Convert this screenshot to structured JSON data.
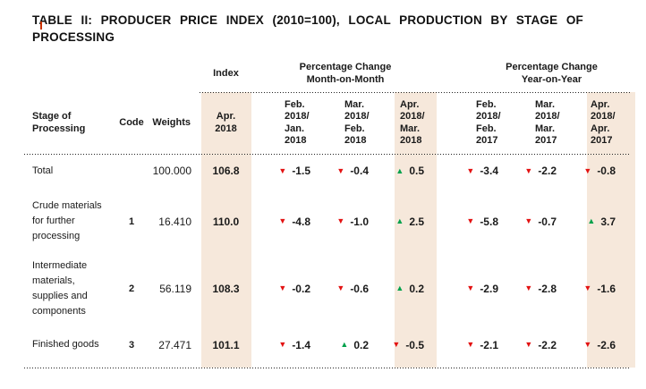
{
  "colors": {
    "highlight_band": "#f6e8db",
    "decrease_red": "#e31212",
    "increase_green": "#00a14b"
  },
  "title": {
    "line1": "TABLE II: PRODUCER PRICE INDEX (2010=100), LOCAL PRODUCTION BY STAGE OF",
    "line2": "PROCESSING"
  },
  "table": {
    "group_headers": {
      "index": "Index",
      "mom": "Percentage Change\nMonth-on-Month",
      "yoy": "Percentage Change\nYear-on-Year"
    },
    "col_headers": {
      "stage": "Stage of\nProcessing",
      "code": "Code",
      "weights": "Weights",
      "index_period": "Apr.\n2018",
      "mom": [
        "Feb.\n2018/\nJan.\n2018",
        "Mar.\n2018/\nFeb.\n2018",
        "Apr.\n2018/\nMar.\n2018"
      ],
      "yoy": [
        "Feb.\n2018/\nFeb.\n2017",
        "Mar.\n2018/\nMar.\n2017",
        "Apr.\n2018/\nApr.\n2017"
      ]
    },
    "rows": [
      {
        "stage": "Total",
        "code": "",
        "weights": "100.000",
        "index": "106.8",
        "changes": [
          {
            "arrow": "▼",
            "color": "#e31212",
            "value": "-1.5"
          },
          {
            "arrow": "▼",
            "color": "#e31212",
            "value": "-0.4"
          },
          {
            "arrow": "▲",
            "color": "#00a14b",
            "value": "0.5"
          },
          {
            "arrow": "▼",
            "color": "#e31212",
            "value": "-3.4"
          },
          {
            "arrow": "▼",
            "color": "#e31212",
            "value": "-2.2"
          },
          {
            "arrow": "▼",
            "color": "#e31212",
            "value": "-0.8"
          }
        ]
      },
      {
        "stage": "Crude materials\nfor further\nprocessing",
        "code": "1",
        "weights": "16.410",
        "index": "110.0",
        "changes": [
          {
            "arrow": "▼",
            "color": "#e31212",
            "value": "-4.8"
          },
          {
            "arrow": "▼",
            "color": "#e31212",
            "value": "-1.0"
          },
          {
            "arrow": "▲",
            "color": "#00a14b",
            "value": "2.5"
          },
          {
            "arrow": "▼",
            "color": "#e31212",
            "value": "-5.8"
          },
          {
            "arrow": "▼",
            "color": "#e31212",
            "value": "-0.7"
          },
          {
            "arrow": "▲",
            "color": "#00a14b",
            "value": "3.7"
          }
        ]
      },
      {
        "stage": "Intermediate\nmaterials,\nsupplies and\ncomponents",
        "code": "2",
        "weights": "56.119",
        "index": "108.3",
        "changes": [
          {
            "arrow": "▼",
            "color": "#e31212",
            "value": "-0.2"
          },
          {
            "arrow": "▼",
            "color": "#e31212",
            "value": "-0.6"
          },
          {
            "arrow": "▲",
            "color": "#00a14b",
            "value": "0.2"
          },
          {
            "arrow": "▼",
            "color": "#e31212",
            "value": "-2.9"
          },
          {
            "arrow": "▼",
            "color": "#e31212",
            "value": "-2.8"
          },
          {
            "arrow": "▼",
            "color": "#e31212",
            "value": "-1.6"
          }
        ]
      },
      {
        "stage": "Finished goods",
        "code": "3",
        "weights": "27.471",
        "index": "101.1",
        "changes": [
          {
            "arrow": "▼",
            "color": "#e31212",
            "value": "-1.4"
          },
          {
            "arrow": "▲",
            "color": "#00a14b",
            "value": "0.2"
          },
          {
            "arrow": "▼",
            "color": "#e31212",
            "value": "-0.5"
          },
          {
            "arrow": "▼",
            "color": "#e31212",
            "value": "-2.1"
          },
          {
            "arrow": "▼",
            "color": "#e31212",
            "value": "-2.2"
          },
          {
            "arrow": "▼",
            "color": "#e31212",
            "value": "-2.6"
          }
        ]
      }
    ]
  }
}
